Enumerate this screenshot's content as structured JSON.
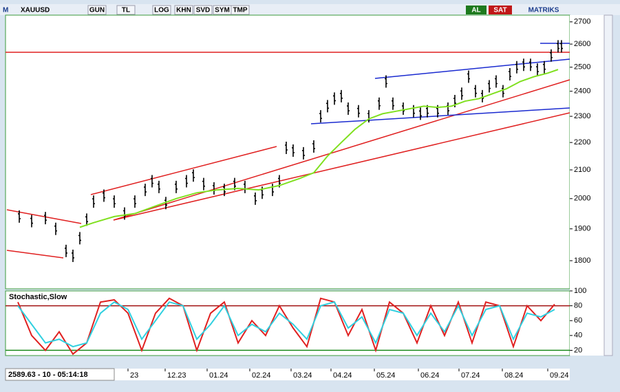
{
  "toolbar": {
    "logo": "M",
    "symbol": "XAUUSD",
    "buttons": [
      "GUN",
      "TL",
      "LOG",
      "KHN",
      "SVD",
      "SYM",
      "TMP"
    ],
    "buy": "AL",
    "sell": "SAT",
    "brand": "MATRIKS"
  },
  "status": "2589.63 - 10 - 05:14:18",
  "chart_data": [
    {
      "type": "bar",
      "log_scale": true,
      "ylim": [
        1716,
        2731
      ],
      "yticks": [
        1800,
        1900,
        2000,
        2100,
        2200,
        2300,
        2400,
        2500,
        2600,
        2700
      ],
      "xlim": [
        -8,
        812
      ],
      "xticks": [
        {
          "value": 170,
          "label": "23"
        },
        {
          "value": 224,
          "label": "12.23"
        },
        {
          "value": 285,
          "label": "01.24"
        },
        {
          "value": 347,
          "label": "02.24"
        },
        {
          "value": 407,
          "label": "03.24"
        },
        {
          "value": 465,
          "label": "04.24"
        },
        {
          "value": 528,
          "label": "05.24"
        },
        {
          "value": 592,
          "label": "06.24"
        },
        {
          "value": 651,
          "label": "07.24"
        },
        {
          "value": 714,
          "label": "08.24"
        },
        {
          "value": 780,
          "label": "09.24"
        }
      ],
      "series": [
        {
          "color": "#000000",
          "x": [
            12,
            30,
            50,
            65,
            80,
            90,
            100,
            110,
            120,
            135,
            150,
            165,
            180,
            195,
            205,
            215,
            225,
            240,
            255,
            265,
            280,
            295,
            310,
            325,
            340,
            355,
            365,
            380,
            390,
            400,
            410,
            425,
            440,
            450,
            460,
            470,
            480,
            490,
            505,
            520,
            535,
            545,
            555,
            570,
            585,
            595,
            605,
            620,
            635,
            645,
            655,
            665,
            675,
            685,
            695,
            705,
            715,
            725,
            735,
            745,
            755,
            765,
            775,
            785,
            795,
            800
          ],
          "values": [
            1940,
            1925,
            1935,
            1900,
            1830,
            1815,
            1870,
            1930,
            1990,
            2010,
            1990,
            1950,
            1990,
            2030,
            2060,
            2040,
            1985,
            2040,
            2060,
            2080,
            2050,
            2035,
            2030,
            2050,
            2040,
            2000,
            2020,
            2030,
            2060,
            2180,
            2170,
            2160,
            2185,
            2300,
            2340,
            2370,
            2380,
            2330,
            2320,
            2300,
            2350,
            2440,
            2350,
            2330,
            2320,
            2310,
            2320,
            2320,
            2330,
            2360,
            2390,
            2460,
            2400,
            2380,
            2420,
            2440,
            2400,
            2470,
            2500,
            2510,
            2510,
            2490,
            2500,
            2550,
            2590,
            2590
          ]
        },
        {
          "type": "line",
          "color": "#80e020",
          "x": [
            100,
            120,
            150,
            180,
            210,
            240,
            270,
            300,
            330,
            360,
            390,
            420,
            440,
            460,
            480,
            500,
            520,
            540,
            560,
            580,
            600,
            620,
            640,
            660,
            680,
            700,
            720,
            740,
            760,
            780,
            795
          ],
          "values": [
            1905,
            1920,
            1940,
            1950,
            1975,
            2000,
            2020,
            2030,
            2035,
            2030,
            2045,
            2070,
            2090,
            2150,
            2200,
            2250,
            2290,
            2310,
            2320,
            2330,
            2340,
            2335,
            2340,
            2360,
            2370,
            2390,
            2410,
            2440,
            2460,
            2475,
            2490
          ]
        }
      ]
    },
    {
      "type": "line",
      "title": "Stochastic,Slow",
      "ylim": [
        13,
        100
      ],
      "yticks": [
        20,
        40,
        60,
        80,
        100
      ],
      "xlim": [
        -8,
        812
      ],
      "series": [
        {
          "color": "#e02020",
          "x": [
            10,
            30,
            50,
            70,
            90,
            110,
            130,
            150,
            170,
            190,
            210,
            230,
            250,
            270,
            290,
            310,
            330,
            350,
            370,
            390,
            410,
            430,
            450,
            470,
            490,
            510,
            530,
            550,
            570,
            590,
            610,
            630,
            650,
            670,
            690,
            710,
            730,
            750,
            770,
            790
          ],
          "values": [
            85,
            40,
            20,
            45,
            15,
            30,
            85,
            88,
            70,
            20,
            70,
            90,
            80,
            20,
            70,
            85,
            30,
            60,
            40,
            80,
            50,
            25,
            90,
            85,
            40,
            75,
            20,
            85,
            70,
            30,
            80,
            40,
            85,
            30,
            85,
            80,
            25,
            80,
            60,
            82
          ]
        },
        {
          "color": "#30d0e0",
          "x": [
            10,
            30,
            50,
            70,
            90,
            110,
            130,
            150,
            170,
            190,
            210,
            230,
            250,
            270,
            290,
            310,
            330,
            350,
            370,
            390,
            410,
            430,
            450,
            470,
            490,
            510,
            530,
            550,
            570,
            590,
            610,
            630,
            650,
            670,
            690,
            710,
            730,
            750,
            770,
            790
          ],
          "values": [
            80,
            55,
            30,
            35,
            25,
            30,
            70,
            85,
            75,
            35,
            60,
            85,
            80,
            35,
            55,
            80,
            40,
            55,
            45,
            70,
            55,
            35,
            80,
            85,
            50,
            65,
            30,
            75,
            70,
            40,
            70,
            45,
            80,
            40,
            75,
            80,
            35,
            70,
            65,
            75
          ]
        }
      ]
    }
  ]
}
